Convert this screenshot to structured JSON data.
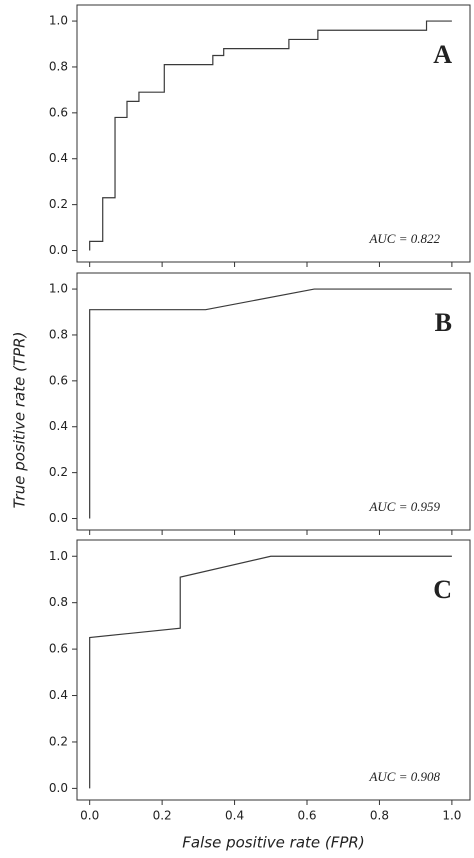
{
  "chart_data": [
    {
      "type": "line",
      "panel_label": "A",
      "annotation": "AUC = 0.822",
      "color": "#3a3a3a",
      "x": [
        0,
        0,
        0.036,
        0.036,
        0.07,
        0.07,
        0.103,
        0.103,
        0.136,
        0.136,
        0.206,
        0.206,
        0.34,
        0.34,
        0.37,
        0.37,
        0.55,
        0.55,
        0.63,
        0.63,
        0.93,
        0.93,
        1
      ],
      "y": [
        0,
        0.04,
        0.04,
        0.23,
        0.23,
        0.58,
        0.58,
        0.65,
        0.65,
        0.69,
        0.69,
        0.81,
        0.81,
        0.85,
        0.85,
        0.88,
        0.88,
        0.92,
        0.92,
        0.96,
        0.96,
        1,
        1
      ],
      "xlim": [
        -0.035,
        1.05
      ],
      "ylim": [
        -0.05,
        1.07
      ],
      "yticks": [
        {
          "value": 0,
          "label": "0.0"
        },
        0.2,
        0.4,
        0.6,
        0.8,
        {
          "value": 1,
          "label": "1.0"
        }
      ]
    },
    {
      "type": "line",
      "panel_label": "B",
      "annotation": "AUC = 0.959",
      "color": "#3a3a3a",
      "ylabel": "True positive rate (TPR)",
      "x": [
        0,
        0,
        0.32,
        0.62,
        1
      ],
      "y": [
        0,
        0.91,
        0.91,
        1,
        1
      ],
      "xlim": [
        -0.035,
        1.05
      ],
      "ylim": [
        -0.05,
        1.07
      ],
      "yticks": [
        {
          "value": 0,
          "label": "0.0"
        },
        0.2,
        0.4,
        0.6,
        0.8,
        {
          "value": 1,
          "label": "1.0"
        }
      ]
    },
    {
      "type": "line",
      "panel_label": "C",
      "annotation": "AUC = 0.908",
      "color": "#3a3a3a",
      "xlabel": "False positive rate (FPR)",
      "x": [
        0,
        0,
        0.25,
        0.25,
        0.5,
        1
      ],
      "y": [
        0,
        0.65,
        0.69,
        0.91,
        1,
        1
      ],
      "xlim": [
        -0.035,
        1.05
      ],
      "ylim": [
        -0.05,
        1.07
      ],
      "xticks": [
        {
          "value": 0,
          "label": "0.0"
        },
        0.2,
        0.4,
        0.6,
        0.8,
        {
          "value": 1,
          "label": "1.0"
        }
      ],
      "yticks": [
        {
          "value": 0,
          "label": "0.0"
        },
        0.2,
        0.4,
        0.6,
        0.8,
        {
          "value": 1,
          "label": "1.0"
        }
      ]
    }
  ]
}
